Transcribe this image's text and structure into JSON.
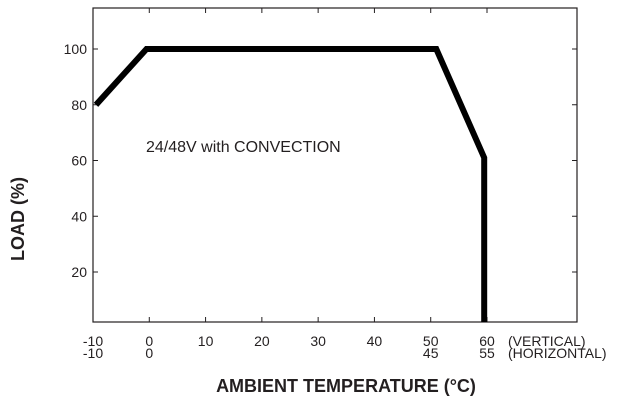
{
  "chart_data": {
    "type": "line",
    "title": "",
    "xlabel": "AMBIENT TEMPERATURE (°C)",
    "ylabel": "LOAD (%)",
    "annotation": "24/48V with CONVECTION",
    "xlim": [
      -10,
      70
    ],
    "ylim": [
      0,
      114
    ],
    "grid": false,
    "x_rows": [
      {
        "ticks": [
          "-10",
          "0",
          "10",
          "20",
          "30",
          "40",
          "50",
          "60"
        ],
        "tick_values": [
          -10,
          0,
          10,
          20,
          30,
          40,
          50,
          60
        ],
        "suffix": "(VERTICAL)"
      },
      {
        "ticks": [
          "-10",
          "0",
          "45",
          "55"
        ],
        "tick_values": [
          -10,
          0,
          50,
          60
        ],
        "suffix": "(HORIZONTAL)"
      }
    ],
    "y_ticks": [
      "20",
      "40",
      "60",
      "80",
      "100"
    ],
    "y_tick_values": [
      20,
      40,
      60,
      80,
      100
    ],
    "series": [
      {
        "x": [
          -10,
          -0.5,
          51,
          59.5,
          59.5
        ],
        "y": [
          80,
          100,
          100,
          61,
          0
        ]
      }
    ],
    "colors": {
      "line": "#000000",
      "frame": "#231f20",
      "tick": "#231f20"
    }
  }
}
